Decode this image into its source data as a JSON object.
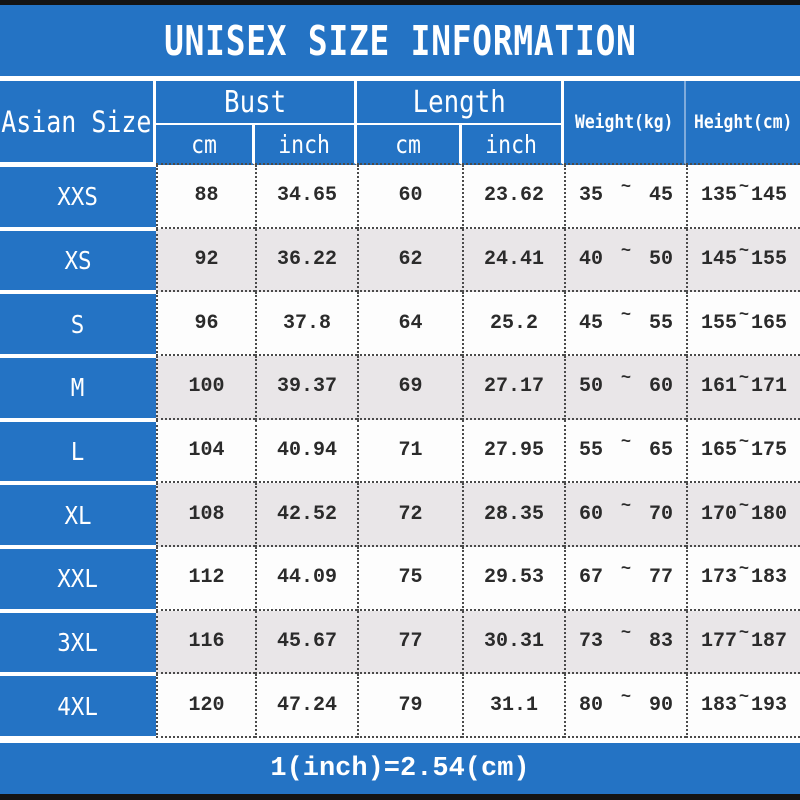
{
  "title": "UNISEX SIZE INFORMATION",
  "colors": {
    "banner_blue": "#2473c4",
    "stripe_gray": "#e9e6e8",
    "divider_light_blue": "#7fabdc",
    "bar_black": "#141414"
  },
  "table": {
    "tilde": "~",
    "size_col_header": "Asian Size",
    "groups": [
      {
        "label": "Bust",
        "sub": [
          "cm",
          "inch"
        ]
      },
      {
        "label": "Length",
        "sub": [
          "cm",
          "inch"
        ]
      }
    ],
    "weight_header": "Weight(kg)",
    "height_header": "Height(cm)",
    "rows": [
      {
        "size": "XXS",
        "bust_cm": "88",
        "bust_inch": "34.65",
        "length_cm": "60",
        "length_inch": "23.62",
        "weight_min": "35",
        "weight_max": "45",
        "height_min": "135",
        "height_max": "145"
      },
      {
        "size": "XS",
        "bust_cm": "92",
        "bust_inch": "36.22",
        "length_cm": "62",
        "length_inch": "24.41",
        "weight_min": "40",
        "weight_max": "50",
        "height_min": "145",
        "height_max": "155"
      },
      {
        "size": "S",
        "bust_cm": "96",
        "bust_inch": "37.8",
        "length_cm": "64",
        "length_inch": "25.2",
        "weight_min": "45",
        "weight_max": "55",
        "height_min": "155",
        "height_max": "165"
      },
      {
        "size": "M",
        "bust_cm": "100",
        "bust_inch": "39.37",
        "length_cm": "69",
        "length_inch": "27.17",
        "weight_min": "50",
        "weight_max": "60",
        "height_min": "161",
        "height_max": "171"
      },
      {
        "size": "L",
        "bust_cm": "104",
        "bust_inch": "40.94",
        "length_cm": "71",
        "length_inch": "27.95",
        "weight_min": "55",
        "weight_max": "65",
        "height_min": "165",
        "height_max": "175"
      },
      {
        "size": "XL",
        "bust_cm": "108",
        "bust_inch": "42.52",
        "length_cm": "72",
        "length_inch": "28.35",
        "weight_min": "60",
        "weight_max": "70",
        "height_min": "170",
        "height_max": "180"
      },
      {
        "size": "XXL",
        "bust_cm": "112",
        "bust_inch": "44.09",
        "length_cm": "75",
        "length_inch": "29.53",
        "weight_min": "67",
        "weight_max": "77",
        "height_min": "173",
        "height_max": "183"
      },
      {
        "size": "3XL",
        "bust_cm": "116",
        "bust_inch": "45.67",
        "length_cm": "77",
        "length_inch": "30.31",
        "weight_min": "73",
        "weight_max": "83",
        "height_min": "177",
        "height_max": "187"
      },
      {
        "size": "4XL",
        "bust_cm": "120",
        "bust_inch": "47.24",
        "length_cm": "79",
        "length_inch": "31.1",
        "weight_min": "80",
        "weight_max": "90",
        "height_min": "183",
        "height_max": "193"
      }
    ]
  },
  "footer": {
    "formula": "1(inch)=2.54(cm)"
  }
}
